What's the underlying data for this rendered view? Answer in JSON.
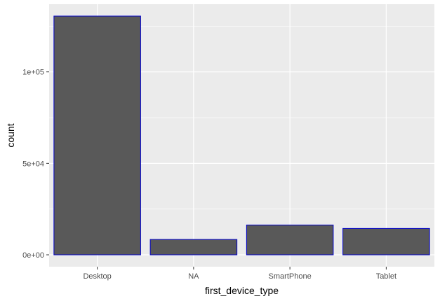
{
  "chart_data": {
    "type": "bar",
    "categories": [
      "Desktop",
      "NA",
      "SmartPhone",
      "Tablet"
    ],
    "values": [
      130500,
      8400,
      16300,
      14400
    ],
    "xlabel": "first_device_type",
    "ylabel": "count",
    "ylim": [
      -6500,
      137000
    ],
    "yticks": [
      0,
      50000,
      100000
    ],
    "ytick_labels": [
      "0e+00",
      "5e+04",
      "1e+05"
    ],
    "grid": true,
    "legend": "none",
    "colors": {
      "panel_background": "#ebebeb",
      "grid_major": "#ffffff",
      "bar_fill": "#595959",
      "bar_outline": "#0000cc",
      "tick_mark": "#333333"
    }
  }
}
